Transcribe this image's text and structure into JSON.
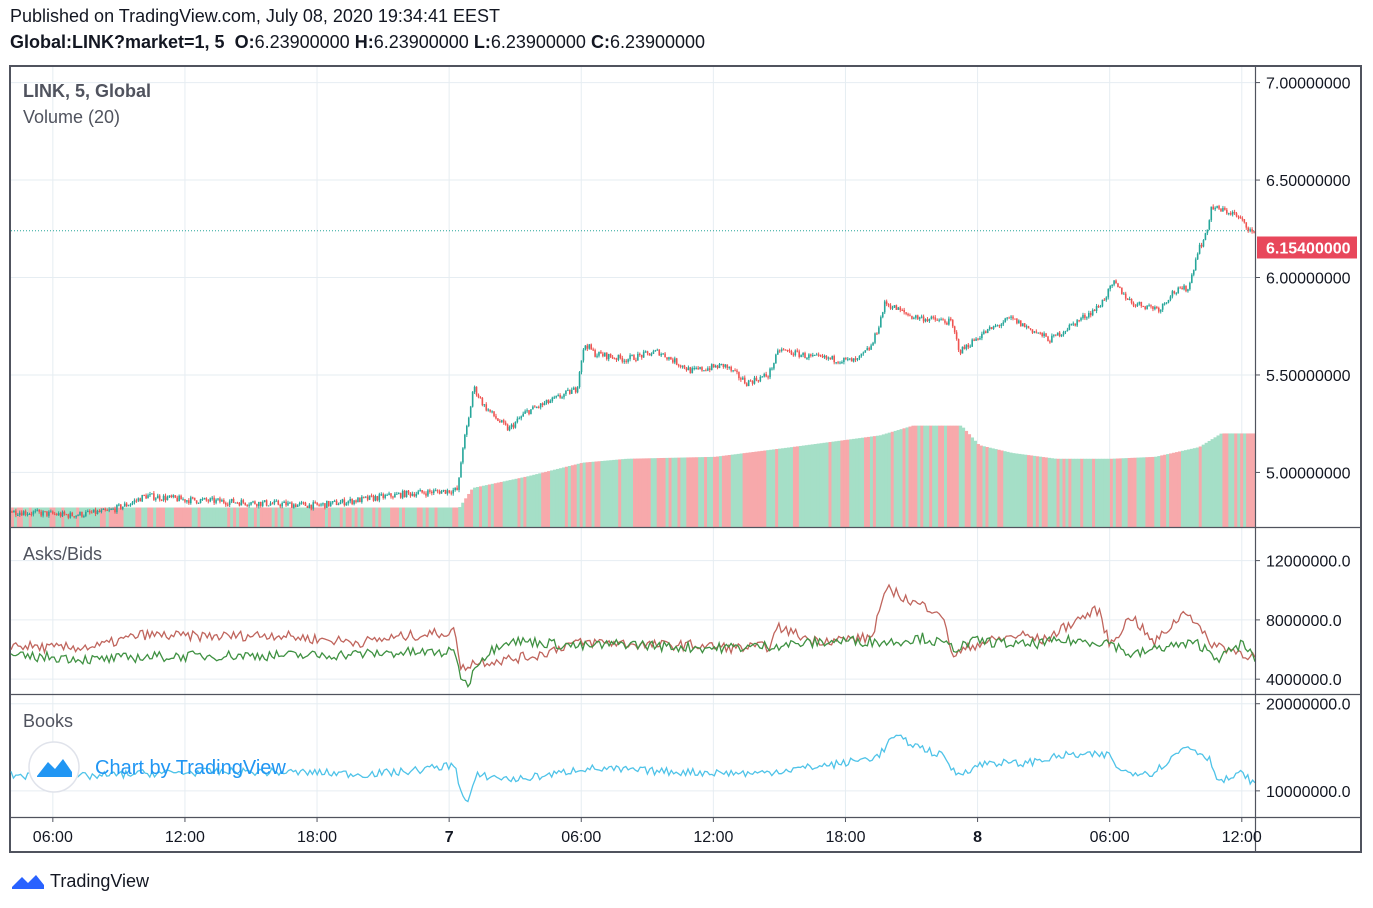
{
  "header": {
    "published": "Published on TradingView.com, July 08, 2020 19:34:41 EEST",
    "symbol": "Global:LINK?market=1, 5",
    "o_label": "O:",
    "o_value": "6.23900000",
    "h_label": "H:",
    "h_value": "6.23900000",
    "l_label": "L:",
    "l_value": "6.23900000",
    "c_label": "C:",
    "c_value": "6.23900000"
  },
  "footer": {
    "brand": "TradingView"
  },
  "watermark": "Chart by TradingView",
  "colors": {
    "up": "#26a69a",
    "down": "#ef5350",
    "vol_up": "#a5dfc7",
    "vol_down": "#f7a9ab",
    "asks": "#c0655d",
    "bids": "#3f9142",
    "books": "#4fc3e8",
    "grid": "#e6edf2",
    "price_tag": "#e8475b",
    "axis": "#50535e"
  },
  "chart_data": [
    {
      "type": "candlestick",
      "pane": "main",
      "legend": "LINK, 5, Global",
      "secondary_legend": "Volume (20)",
      "ylim": [
        4.72,
        7.08
      ],
      "y_ticks": [
        "7.00000000",
        "6.50000000",
        "6.00000000",
        "5.50000000",
        "5.00000000"
      ],
      "y_tick_values": [
        7.0,
        6.5,
        6.0,
        5.5,
        5.0
      ],
      "last_price_label": "6.15400000",
      "last_price": 6.154,
      "dotted_level": 6.24,
      "x_ticks": [
        "06:00",
        "12:00",
        "18:00",
        "7",
        "06:00",
        "12:00",
        "18:00",
        "8",
        "06:00",
        "12:00"
      ],
      "x_tick_hours": [
        6,
        12,
        18,
        24,
        30,
        36,
        42,
        48,
        54,
        60
      ],
      "x_tick_bold": [
        false,
        false,
        false,
        true,
        false,
        false,
        false,
        true,
        false,
        false
      ],
      "x_range_hours": [
        4.1,
        60.6
      ],
      "price_path": [
        [
          4.1,
          4.8
        ],
        [
          5.5,
          4.79
        ],
        [
          6.8,
          4.78
        ],
        [
          8.5,
          4.8
        ],
        [
          9.5,
          4.84
        ],
        [
          10.2,
          4.88
        ],
        [
          12,
          4.86
        ],
        [
          14,
          4.85
        ],
        [
          16,
          4.84
        ],
        [
          18,
          4.83
        ],
        [
          20,
          4.86
        ],
        [
          22,
          4.89
        ],
        [
          24.4,
          4.91
        ],
        [
          24.6,
          5.12
        ],
        [
          24.9,
          5.28
        ],
        [
          25.1,
          5.44
        ],
        [
          25.6,
          5.34
        ],
        [
          26.2,
          5.27
        ],
        [
          26.7,
          5.22
        ],
        [
          27.5,
          5.31
        ],
        [
          28.5,
          5.36
        ],
        [
          29.8,
          5.43
        ],
        [
          30.0,
          5.58
        ],
        [
          30.2,
          5.66
        ],
        [
          30.6,
          5.61
        ],
        [
          32,
          5.58
        ],
        [
          33.5,
          5.62
        ],
        [
          35,
          5.52
        ],
        [
          36.5,
          5.55
        ],
        [
          37.5,
          5.46
        ],
        [
          38.5,
          5.5
        ],
        [
          39.0,
          5.63
        ],
        [
          40.5,
          5.59
        ],
        [
          42.5,
          5.57
        ],
        [
          43.2,
          5.65
        ],
        [
          43.5,
          5.75
        ],
        [
          43.8,
          5.87
        ],
        [
          45,
          5.8
        ],
        [
          46.8,
          5.77
        ],
        [
          47.2,
          5.62
        ],
        [
          48.2,
          5.71
        ],
        [
          49.5,
          5.79
        ],
        [
          51.3,
          5.68
        ],
        [
          52.2,
          5.75
        ],
        [
          53.5,
          5.85
        ],
        [
          54.2,
          5.97
        ],
        [
          55,
          5.87
        ],
        [
          56.3,
          5.84
        ],
        [
          56.8,
          5.92
        ],
        [
          57.6,
          5.95
        ],
        [
          58.0,
          6.14
        ],
        [
          58.4,
          6.22
        ],
        [
          58.6,
          6.36
        ],
        [
          59.6,
          6.33
        ],
        [
          60.2,
          6.27
        ],
        [
          60.6,
          6.21
        ]
      ],
      "volume_path": [
        [
          4.1,
          4.82
        ],
        [
          24.4,
          4.82
        ],
        [
          25.0,
          4.92
        ],
        [
          27.5,
          4.98
        ],
        [
          30.0,
          5.05
        ],
        [
          32,
          5.07
        ],
        [
          36,
          5.08
        ],
        [
          39.5,
          5.13
        ],
        [
          43.5,
          5.19
        ],
        [
          45,
          5.24
        ],
        [
          47.2,
          5.24
        ],
        [
          48.0,
          5.14
        ],
        [
          49.5,
          5.1
        ],
        [
          51.5,
          5.07
        ],
        [
          54.0,
          5.07
        ],
        [
          56.0,
          5.08
        ],
        [
          58.0,
          5.13
        ],
        [
          59.0,
          5.2
        ],
        [
          60.6,
          5.2
        ]
      ]
    },
    {
      "type": "line",
      "pane": "asks_bids",
      "legend": "Asks/Bids",
      "ylim": [
        3000000,
        14200000
      ],
      "y_ticks": [
        "12000000.0",
        "8000000.0",
        "4000000.0"
      ],
      "y_tick_values": [
        12000000,
        8000000,
        4000000
      ],
      "series": [
        {
          "name": "Asks",
          "color": "#c0655d",
          "values": [
            [
              4.1,
              6300000
            ],
            [
              6,
              6100000
            ],
            [
              8,
              6200000
            ],
            [
              10,
              7000000
            ],
            [
              12,
              6900000
            ],
            [
              14,
              6900000
            ],
            [
              16,
              7000000
            ],
            [
              18,
              6700000
            ],
            [
              20,
              6500000
            ],
            [
              22,
              6900000
            ],
            [
              24.3,
              7200000
            ],
            [
              24.5,
              4600000
            ],
            [
              25.0,
              5100000
            ],
            [
              26.5,
              5300000
            ],
            [
              28,
              5600000
            ],
            [
              29.5,
              6400000
            ],
            [
              31,
              6500000
            ],
            [
              33,
              6300000
            ],
            [
              35,
              6300000
            ],
            [
              37,
              6100000
            ],
            [
              38.5,
              6200000
            ],
            [
              39.0,
              7500000
            ],
            [
              40.5,
              6600000
            ],
            [
              42,
              6700000
            ],
            [
              43.2,
              6800000
            ],
            [
              43.6,
              9000000
            ],
            [
              44.0,
              10100000
            ],
            [
              45,
              9200000
            ],
            [
              46.3,
              8600000
            ],
            [
              46.9,
              5600000
            ],
            [
              48,
              6400000
            ],
            [
              50,
              7000000
            ],
            [
              51,
              6600000
            ],
            [
              52.5,
              8000000
            ],
            [
              53.5,
              8700000
            ],
            [
              54,
              6300000
            ],
            [
              55,
              8300000
            ],
            [
              56,
              6400000
            ],
            [
              57.5,
              8700000
            ],
            [
              58.5,
              6500000
            ],
            [
              59.5,
              6000000
            ],
            [
              60.6,
              5500000
            ]
          ]
        },
        {
          "name": "Bids",
          "color": "#3f9142",
          "values": [
            [
              4.1,
              5500000
            ],
            [
              6,
              5500000
            ],
            [
              8,
              5300000
            ],
            [
              10,
              5500000
            ],
            [
              14,
              5600000
            ],
            [
              18,
              5600000
            ],
            [
              22,
              5800000
            ],
            [
              24.3,
              5800000
            ],
            [
              24.5,
              4300000
            ],
            [
              24.8,
              3500000
            ],
            [
              25.3,
              5200000
            ],
            [
              26.5,
              6600000
            ],
            [
              28,
              6500000
            ],
            [
              30,
              6200000
            ],
            [
              32,
              6400000
            ],
            [
              34,
              6200000
            ],
            [
              36,
              6100000
            ],
            [
              38,
              6200000
            ],
            [
              40,
              6400000
            ],
            [
              42,
              6600000
            ],
            [
              44,
              6500000
            ],
            [
              45.5,
              6800000
            ],
            [
              47,
              6100000
            ],
            [
              48,
              6600000
            ],
            [
              50,
              6300000
            ],
            [
              52,
              6600000
            ],
            [
              54,
              6500000
            ],
            [
              55,
              5600000
            ],
            [
              56.5,
              6200000
            ],
            [
              58,
              6400000
            ],
            [
              59,
              5400000
            ],
            [
              60,
              6400000
            ],
            [
              60.6,
              5400000
            ]
          ]
        }
      ]
    },
    {
      "type": "line",
      "pane": "books",
      "legend": "Books",
      "ylim": [
        7000000,
        21000000
      ],
      "y_ticks": [
        "20000000.0",
        "10000000.0"
      ],
      "y_tick_values": [
        20000000,
        10000000
      ],
      "series": [
        {
          "name": "Books",
          "color": "#4fc3e8",
          "values": [
            [
              4.1,
              11800000
            ],
            [
              6,
              11600000
            ],
            [
              8,
              11700000
            ],
            [
              10,
              12000000
            ],
            [
              14,
              12200000
            ],
            [
              18,
              12100000
            ],
            [
              20,
              11900000
            ],
            [
              22,
              12200000
            ],
            [
              24.3,
              13000000
            ],
            [
              24.5,
              10000000
            ],
            [
              24.8,
              8500000
            ],
            [
              25.3,
              11800000
            ],
            [
              27,
              11300000
            ],
            [
              29,
              12000000
            ],
            [
              30,
              12600000
            ],
            [
              32,
              12400000
            ],
            [
              34,
              12200000
            ],
            [
              36,
              12100000
            ],
            [
              38,
              12000000
            ],
            [
              40,
              12600000
            ],
            [
              42,
              13200000
            ],
            [
              43.5,
              14000000
            ],
            [
              44.2,
              16300000
            ],
            [
              45,
              15400000
            ],
            [
              46.5,
              13900000
            ],
            [
              47,
              11900000
            ],
            [
              48.5,
              13300000
            ],
            [
              50,
              13100000
            ],
            [
              52,
              14100000
            ],
            [
              54,
              14100000
            ],
            [
              54.5,
              12200000
            ],
            [
              56,
              12100000
            ],
            [
              57.5,
              15200000
            ],
            [
              58.5,
              13800000
            ],
            [
              59,
              11000000
            ],
            [
              60,
              12000000
            ],
            [
              60.6,
              10800000
            ]
          ]
        }
      ]
    }
  ]
}
